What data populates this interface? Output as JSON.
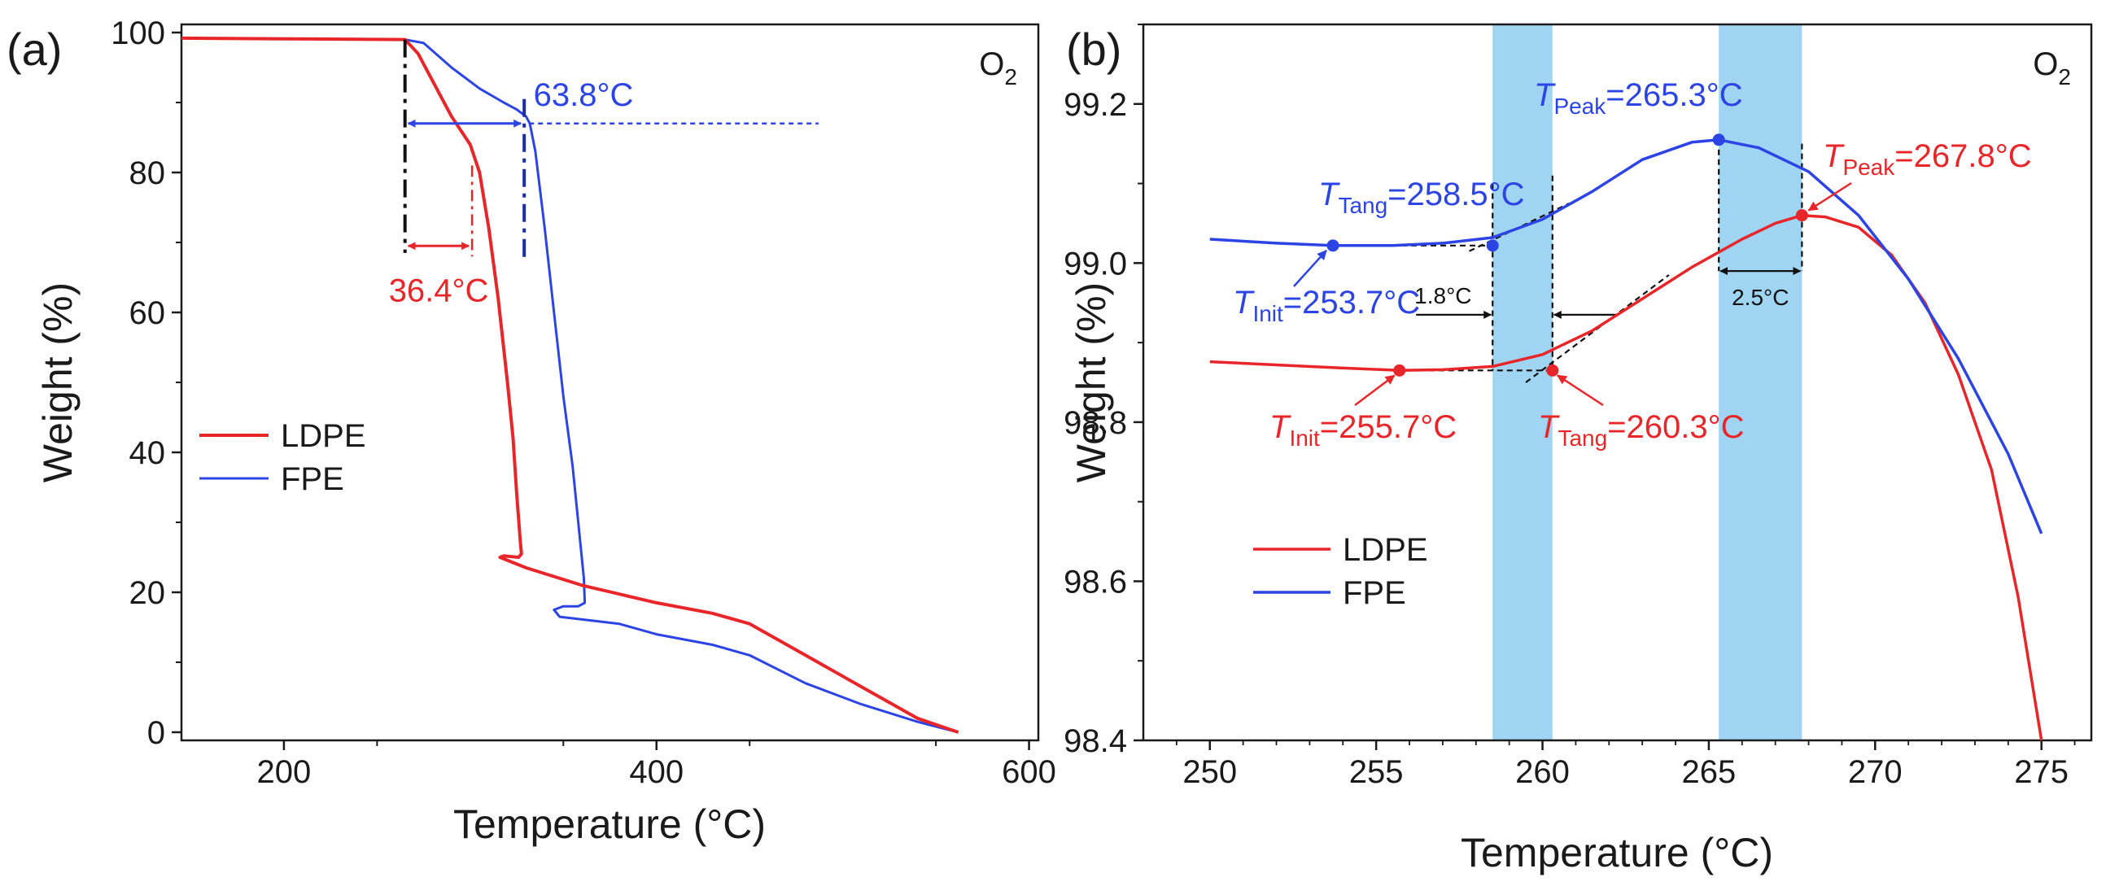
{
  "colors": {
    "ldpe": "#e8262a",
    "fpe": "#2c44e4",
    "band": "#9fd4f2",
    "axis": "#1a1a1a"
  },
  "chart_data": [
    {
      "type": "line",
      "panel_label": "(a)",
      "xlabel": "Temperature (°C)",
      "ylabel": "Weight (%)",
      "xlim": [
        145,
        605
      ],
      "ylim": [
        0,
        100
      ],
      "xticks": [
        200,
        400,
        600
      ],
      "yticks": [
        0,
        20,
        40,
        60,
        80,
        100
      ],
      "xtick_labels": [
        "200",
        "400",
        "600"
      ],
      "ytick_labels": [
        "0",
        "20",
        "40",
        "60",
        "80",
        "100"
      ],
      "atmosphere": {
        "main": "O",
        "sub": "2"
      },
      "legend": {
        "position": "center-left",
        "entries": [
          "LDPE",
          "FPE"
        ]
      },
      "series": [
        {
          "name": "LDPE",
          "color": "#e8262a",
          "x": [
            145,
            200,
            265,
            272,
            280,
            290,
            300,
            305,
            310,
            315,
            320,
            323,
            325,
            327,
            327.5,
            326,
            318,
            316,
            330,
            360,
            400,
            430,
            450,
            480,
            510,
            540,
            562
          ],
          "y": [
            99.2,
            99.1,
            99.0,
            97,
            93,
            88,
            84,
            80,
            72,
            62,
            50,
            42,
            34,
            27,
            25.5,
            25,
            25.2,
            25,
            23.5,
            21,
            18.5,
            17,
            15.5,
            11,
            6.5,
            2,
            0
          ]
        },
        {
          "name": "FPE",
          "color": "#2c44e4",
          "x": [
            145,
            200,
            265,
            275,
            290,
            305,
            318,
            325,
            330,
            332,
            335,
            340,
            345,
            350,
            355,
            358,
            361,
            361.5,
            358,
            350,
            345,
            348,
            380,
            400,
            430,
            450,
            480,
            510,
            540,
            562
          ],
          "y": [
            99.2,
            99.1,
            99.0,
            98.5,
            95,
            92,
            90,
            89,
            88,
            87,
            83,
            72,
            60,
            48,
            38,
            30,
            22,
            18.5,
            18,
            18,
            17.5,
            16.5,
            15.5,
            14,
            12.5,
            11,
            7,
            4,
            1.5,
            0
          ]
        }
      ],
      "annotations": [
        {
          "id": "fpe-shift",
          "text": "63.8°C",
          "from_x": 265,
          "to_x": 329,
          "y": 87,
          "color": "#2c44e4"
        },
        {
          "id": "ldpe-shift",
          "text": "36.4°C",
          "from_x": 265,
          "to_x": 301,
          "y": 69.5,
          "color": "#e8262a"
        }
      ]
    },
    {
      "type": "line",
      "panel_label": "(b)",
      "xlabel": "Temperature (°C)",
      "ylabel": "Weight (%)",
      "xlim": [
        248,
        276.5
      ],
      "ylim": [
        98.4,
        99.3
      ],
      "xticks": [
        250,
        255,
        260,
        265,
        270,
        275
      ],
      "yticks": [
        98.4,
        98.6,
        98.8,
        99.0,
        99.2
      ],
      "xtick_labels": [
        "250",
        "255",
        "260",
        "265",
        "270",
        "275"
      ],
      "ytick_labels": [
        "98.4",
        "98.6",
        "98.8",
        "99.0",
        "99.2"
      ],
      "atmosphere": {
        "main": "O",
        "sub": "2"
      },
      "legend": {
        "position": "bottom-left",
        "entries": [
          "LDPE",
          "FPE"
        ]
      },
      "bands": [
        {
          "from_x": 258.5,
          "to_x": 260.3
        },
        {
          "from_x": 265.3,
          "to_x": 267.8
        }
      ],
      "series": [
        {
          "name": "LDPE",
          "color": "#e8262a",
          "x": [
            250,
            252,
            254,
            255.7,
            257,
            258.5,
            260,
            261.5,
            263,
            264.5,
            266,
            267,
            267.8,
            268.5,
            269.5,
            270.5,
            271.5,
            272.5,
            273.5,
            274.3,
            275
          ],
          "y": [
            98.876,
            98.872,
            98.868,
            98.865,
            98.866,
            98.87,
            98.885,
            98.915,
            98.955,
            98.995,
            99.03,
            99.05,
            99.06,
            99.058,
            99.045,
            99.01,
            98.95,
            98.86,
            98.74,
            98.58,
            98.4
          ]
        },
        {
          "name": "FPE",
          "color": "#2c44e4",
          "x": [
            250,
            252,
            253.7,
            255.5,
            257,
            258.5,
            260,
            261.5,
            263,
            264.5,
            265.3,
            266.5,
            268,
            269.5,
            271,
            272.5,
            274,
            275
          ],
          "y": [
            99.03,
            99.025,
            99.022,
            99.022,
            99.025,
            99.032,
            99.055,
            99.09,
            99.13,
            99.152,
            99.155,
            99.145,
            99.115,
            99.06,
            98.98,
            98.88,
            98.76,
            98.66
          ]
        }
      ],
      "points": [
        {
          "series": "FPE",
          "x": 253.7,
          "y": 99.022,
          "label_main": "T",
          "label_sub": "Init",
          "label_value": "=253.7°C"
        },
        {
          "series": "FPE",
          "x": 258.5,
          "y": 99.022,
          "label_main": "T",
          "label_sub": "Tang",
          "label_value": "=258.5°C"
        },
        {
          "series": "FPE",
          "x": 265.3,
          "y": 99.155,
          "label_main": "T",
          "label_sub": "Peak",
          "label_value": "=265.3°C"
        },
        {
          "series": "LDPE",
          "x": 255.7,
          "y": 98.865,
          "label_main": "T",
          "label_sub": "Init",
          "label_value": "=255.7°C"
        },
        {
          "series": "LDPE",
          "x": 260.3,
          "y": 98.865,
          "label_main": "T",
          "label_sub": "Tang",
          "label_value": "=260.3°C"
        },
        {
          "series": "LDPE",
          "x": 267.8,
          "y": 99.06,
          "label_main": "T",
          "label_sub": "Peak",
          "label_value": "=267.8°C"
        }
      ],
      "gap_labels": [
        {
          "id": "tang-gap",
          "text": "1.8°C",
          "from_x": 258.5,
          "to_x": 260.3,
          "y": 98.935
        },
        {
          "id": "peak-gap",
          "text": "2.5°C",
          "from_x": 265.3,
          "to_x": 267.8,
          "y": 98.99
        }
      ]
    }
  ]
}
